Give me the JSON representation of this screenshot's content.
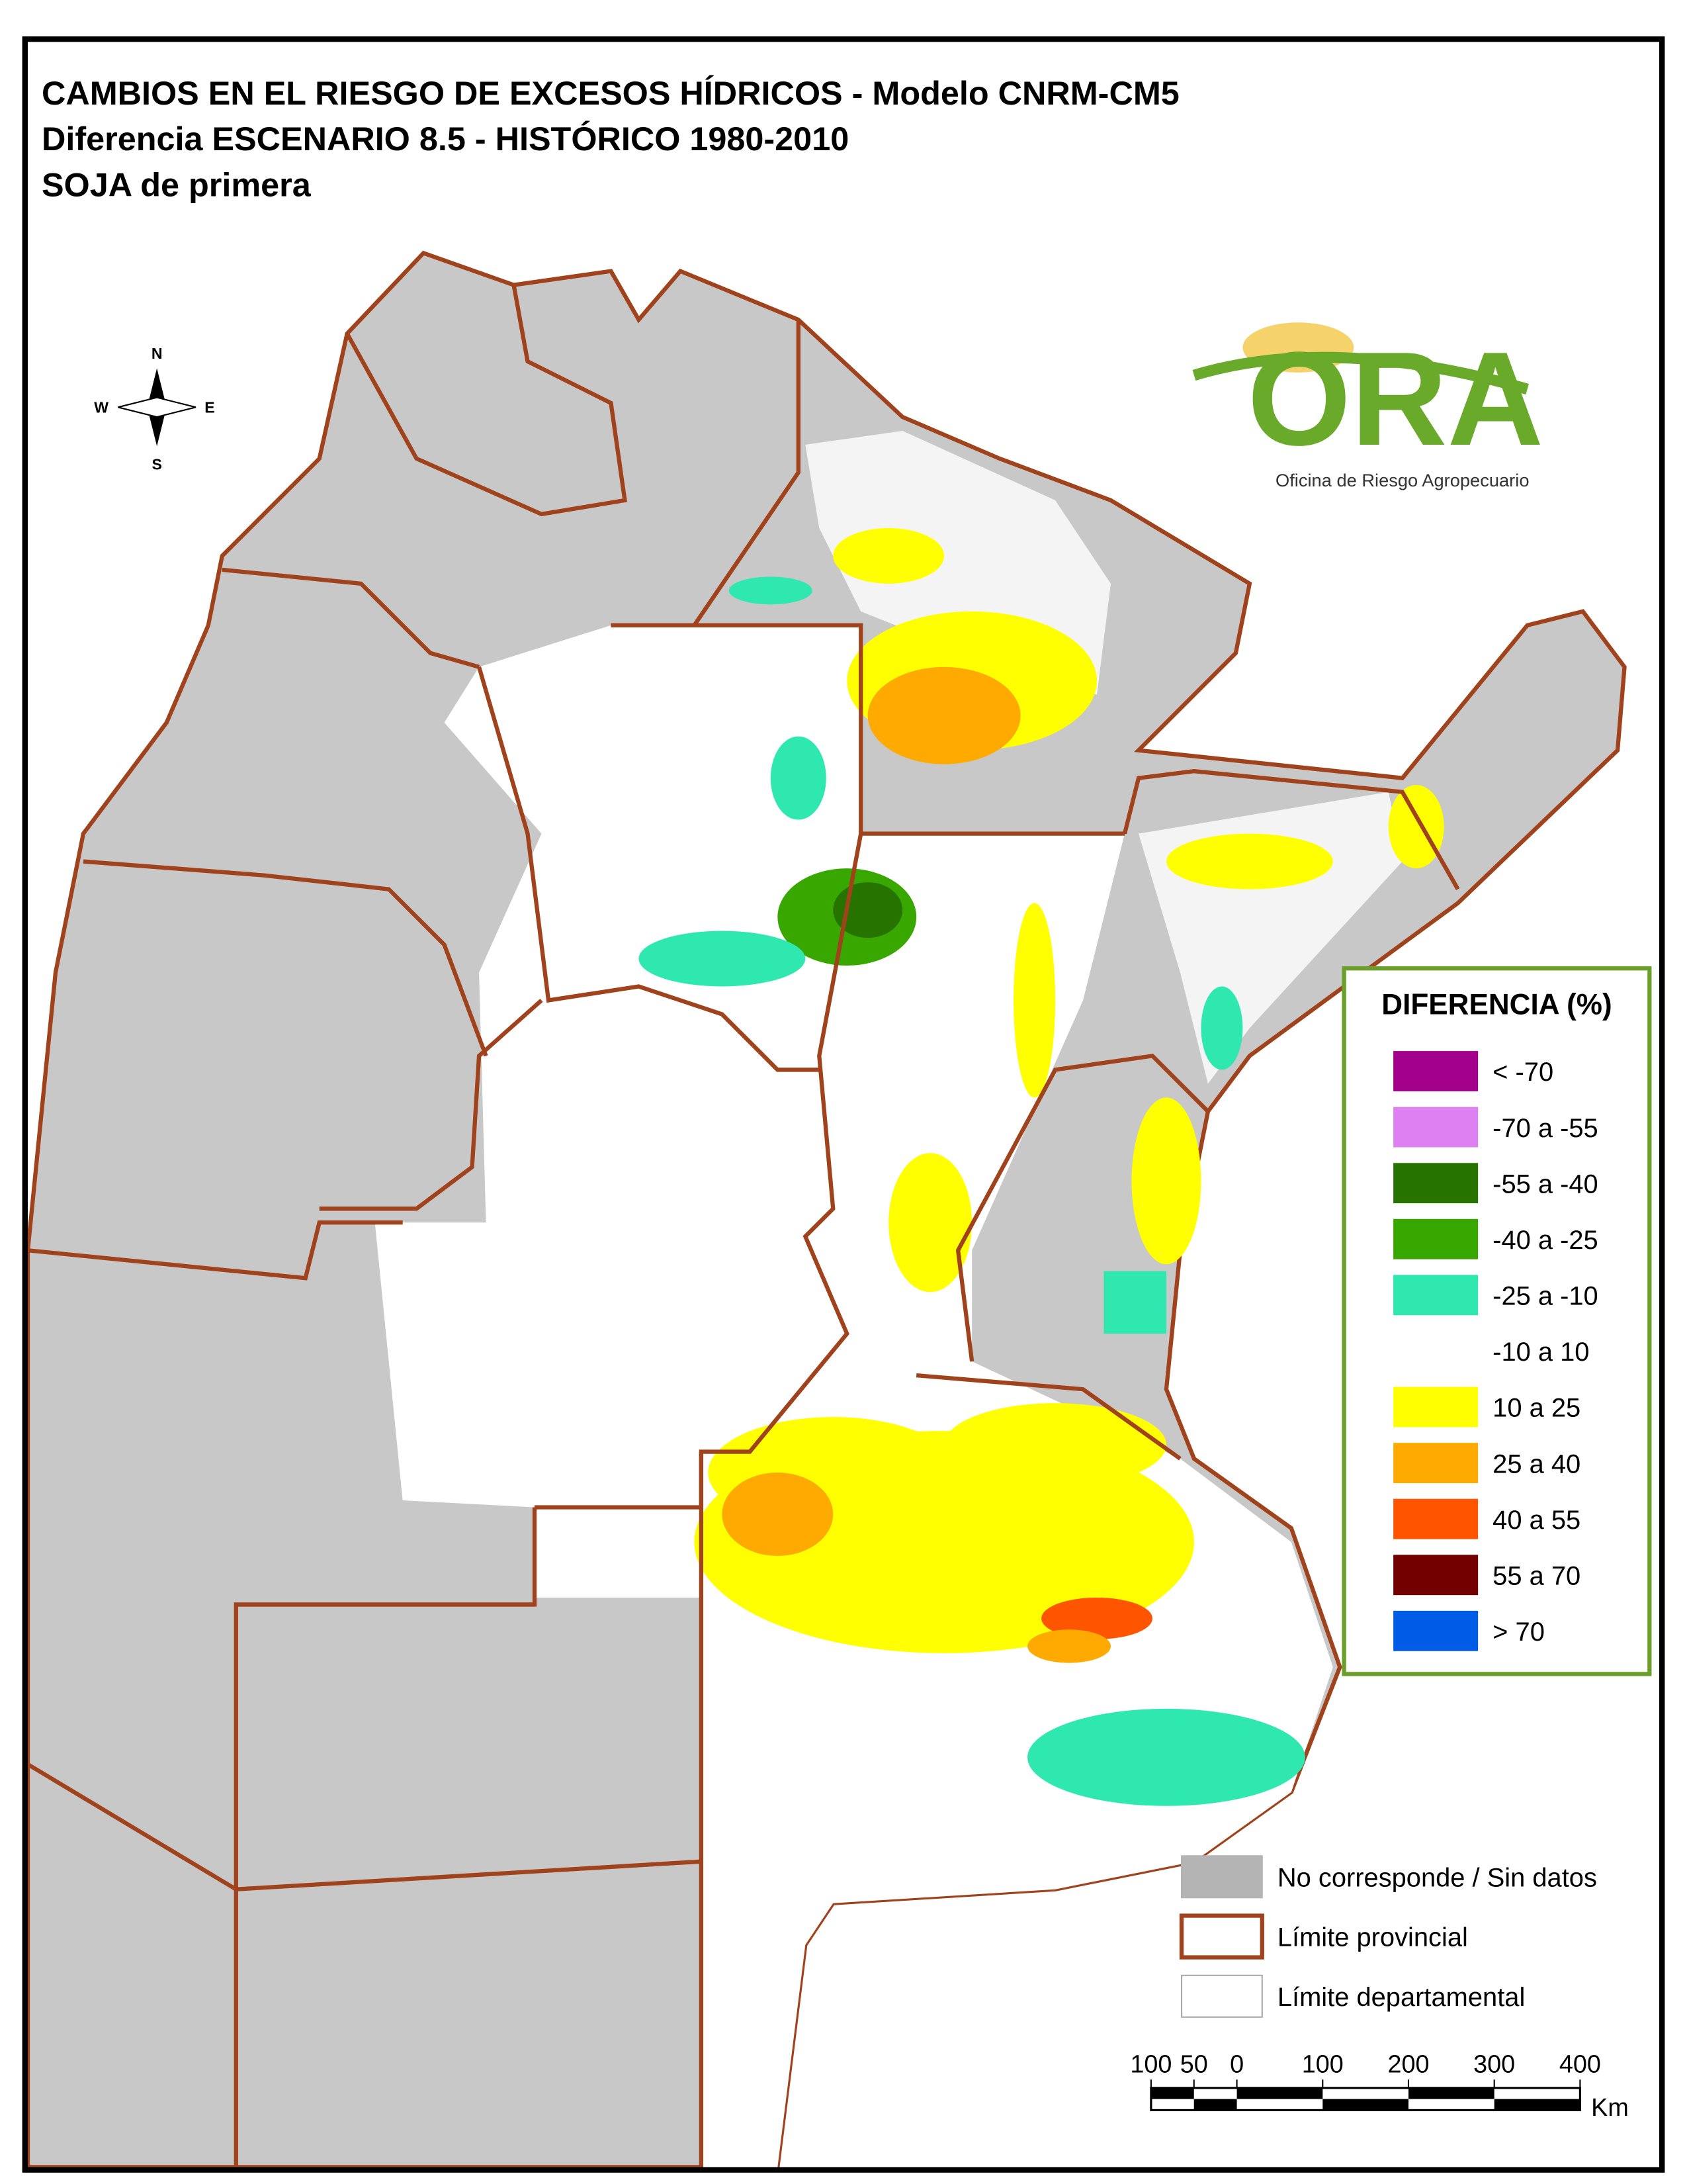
{
  "title": [
    "CAMBIOS EN EL RIESGO DE EXCESOS HÍDRICOS - Modelo CNRM-CM5",
    "Diferencia ESCENARIO 8.5 - HISTÓRICO 1980-2010",
    "SOJA de primera"
  ],
  "compass": {
    "n": "N",
    "s": "S",
    "e": "E",
    "w": "W"
  },
  "logo": {
    "name": "ORA",
    "subtitle": "Oficina de Riesgo Agropecuario"
  },
  "legend": {
    "title": "DIFERENCIA (%)",
    "items": [
      {
        "label": "< -70",
        "color": "#a3008c"
      },
      {
        "label": "-70 a -55",
        "color": "#df80f2"
      },
      {
        "label": "-55 a -40",
        "color": "#267300"
      },
      {
        "label": "-40 a -25",
        "color": "#38a800"
      },
      {
        "label": "-25 a -10",
        "color": "#2ee8b0"
      },
      {
        "label": "-10 a 10",
        "color": "#ffffff"
      },
      {
        "label": "10 a 25",
        "color": "#ffff00"
      },
      {
        "label": "25 a 40",
        "color": "#ffaa00"
      },
      {
        "label": "40 a 55",
        "color": "#ff5500"
      },
      {
        "label": "55 a 70",
        "color": "#730000"
      },
      {
        "label": "> 70",
        "color": "#005ce6"
      }
    ]
  },
  "reference": [
    {
      "label": "No corresponde / Sin datos",
      "kind": "nodata"
    },
    {
      "label": "Límite provincial",
      "kind": "province"
    },
    {
      "label": "Límite departamental",
      "kind": "department"
    }
  ],
  "scalebar": {
    "ticks": [
      {
        "value": -100,
        "label": "100"
      },
      {
        "value": -50,
        "label": "50"
      },
      0,
      100,
      200,
      300,
      400
    ],
    "unit": "Km"
  }
}
